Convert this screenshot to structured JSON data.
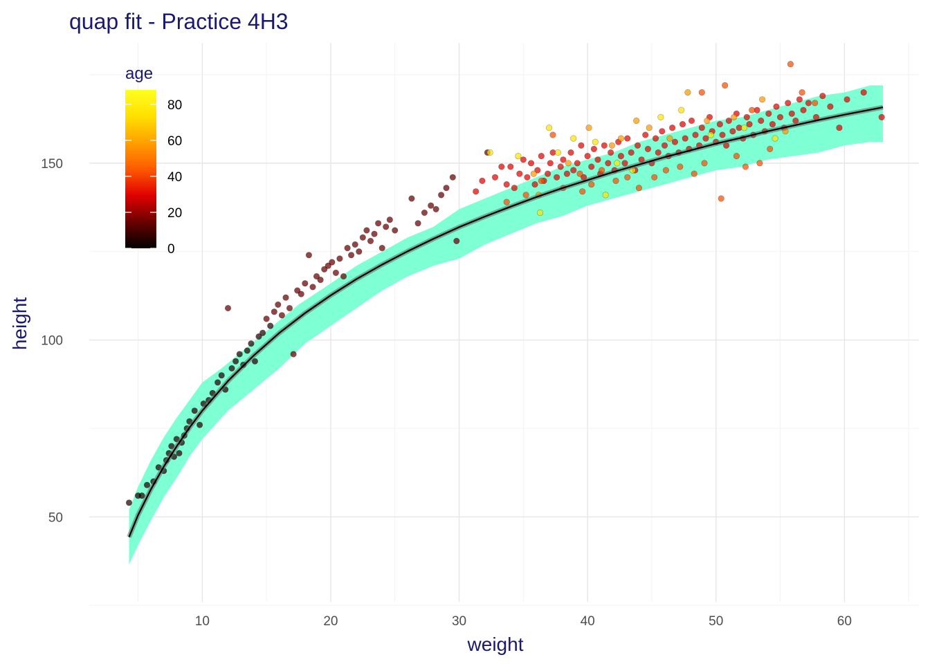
{
  "chart_data": {
    "type": "scatter",
    "title": "quap fit - Practice 4H3",
    "xlabel": "weight",
    "ylabel": "height",
    "xlim": [
      1.2,
      65.8
    ],
    "ylim": [
      26,
      184
    ],
    "x_ticks": [
      10,
      20,
      30,
      40,
      50,
      60
    ],
    "y_ticks": [
      50,
      100,
      150
    ],
    "grid": true,
    "title_color": "#191970",
    "band_color": "#7fffd4",
    "line_color": "#000000",
    "legend": {
      "title": "age",
      "position": "top-left",
      "ticks": [
        0,
        20,
        40,
        60,
        80
      ],
      "range": [
        0,
        88
      ],
      "colors": [
        "#000000",
        "#6b0000",
        "#e00000",
        "#ff5a00",
        "#ffa000",
        "#ffe000",
        "#ffff20"
      ]
    },
    "mean_line": [
      [
        4.3,
        44.3
      ],
      [
        5,
        50.5
      ],
      [
        6,
        57.8
      ],
      [
        7,
        64.2
      ],
      [
        8,
        69.9
      ],
      [
        9,
        75.2
      ],
      [
        10,
        80
      ],
      [
        12,
        88.4
      ],
      [
        14,
        95.6
      ],
      [
        16,
        102
      ],
      [
        18,
        107.6
      ],
      [
        20,
        112.6
      ],
      [
        22,
        117.2
      ],
      [
        24,
        121.3
      ],
      [
        26,
        125.1
      ],
      [
        28,
        128.6
      ],
      [
        30,
        131.9
      ],
      [
        32,
        134.9
      ],
      [
        34,
        137.7
      ],
      [
        36,
        140.4
      ],
      [
        38,
        142.9
      ],
      [
        40,
        145.2
      ],
      [
        42,
        147.5
      ],
      [
        44,
        149.6
      ],
      [
        46,
        151.7
      ],
      [
        48,
        153.6
      ],
      [
        50,
        155.5
      ],
      [
        52,
        157.2
      ],
      [
        54,
        159
      ],
      [
        56,
        160.6
      ],
      [
        58,
        162.2
      ],
      [
        60,
        163.7
      ],
      [
        62,
        165.1
      ],
      [
        63,
        165.8
      ]
    ],
    "interval_upper": [
      [
        4.3,
        52
      ],
      [
        5,
        58.5
      ],
      [
        6,
        66
      ],
      [
        7,
        72.5
      ],
      [
        8,
        78
      ],
      [
        9,
        83
      ],
      [
        10,
        88
      ],
      [
        11.5,
        92
      ],
      [
        13.5,
        98
      ],
      [
        15.5,
        104
      ],
      [
        17.5,
        110
      ],
      [
        20,
        116
      ],
      [
        22,
        121
      ],
      [
        24,
        125
      ],
      [
        26,
        129
      ],
      [
        28,
        132
      ],
      [
        30,
        137
      ],
      [
        32,
        140
      ],
      [
        34,
        143
      ],
      [
        36,
        146
      ],
      [
        38,
        149
      ],
      [
        40,
        151
      ],
      [
        42,
        153
      ],
      [
        44,
        156
      ],
      [
        46,
        158
      ],
      [
        48,
        160
      ],
      [
        50,
        162
      ],
      [
        52,
        163
      ],
      [
        54,
        165
      ],
      [
        56,
        167
      ],
      [
        58,
        169
      ],
      [
        60,
        170
      ],
      [
        62,
        172
      ],
      [
        63,
        172
      ]
    ],
    "interval_lower": [
      [
        4.3,
        36.5
      ],
      [
        5,
        42
      ],
      [
        6,
        49
      ],
      [
        7,
        55.5
      ],
      [
        8,
        61
      ],
      [
        9,
        67
      ],
      [
        10,
        72
      ],
      [
        12,
        80
      ],
      [
        14,
        86
      ],
      [
        16,
        92
      ],
      [
        18,
        99
      ],
      [
        20,
        104
      ],
      [
        22,
        109
      ],
      [
        24,
        114
      ],
      [
        26,
        118
      ],
      [
        28,
        121
      ],
      [
        30,
        123
      ],
      [
        32,
        127
      ],
      [
        34,
        130
      ],
      [
        36,
        133
      ],
      [
        38,
        135
      ],
      [
        40,
        138
      ],
      [
        42,
        140
      ],
      [
        44,
        142
      ],
      [
        46,
        144
      ],
      [
        48,
        146
      ],
      [
        50,
        148
      ],
      [
        52,
        149
      ],
      [
        54,
        151
      ],
      [
        56,
        152
      ],
      [
        58,
        153
      ],
      [
        60,
        155
      ],
      [
        62,
        156
      ],
      [
        63,
        156
      ]
    ],
    "points": [
      [
        4.3,
        54,
        1
      ],
      [
        5,
        56,
        1
      ],
      [
        5.3,
        56,
        1
      ],
      [
        5.7,
        59,
        1
      ],
      [
        6.2,
        60,
        1
      ],
      [
        6.6,
        64,
        1
      ],
      [
        7,
        63,
        1
      ],
      [
        7.2,
        66,
        1
      ],
      [
        7.4,
        68,
        1
      ],
      [
        7.6,
        70,
        1
      ],
      [
        7.8,
        67,
        1
      ],
      [
        8,
        72,
        1
      ],
      [
        8.2,
        68,
        1
      ],
      [
        8.4,
        71,
        1
      ],
      [
        8.6,
        73,
        1
      ],
      [
        8.8,
        75,
        1
      ],
      [
        9,
        77,
        1
      ],
      [
        9.4,
        80,
        1
      ],
      [
        9.8,
        76,
        1
      ],
      [
        10.1,
        82,
        1
      ],
      [
        10.5,
        83,
        1
      ],
      [
        10.8,
        85,
        1
      ],
      [
        11.2,
        88,
        1
      ],
      [
        11.5,
        90,
        1
      ],
      [
        11.8,
        86,
        1
      ],
      [
        12,
        109,
        2
      ],
      [
        12.3,
        92,
        1
      ],
      [
        12.6,
        94,
        1
      ],
      [
        12.9,
        96,
        1
      ],
      [
        13.2,
        93,
        1
      ],
      [
        13.5,
        97,
        1
      ],
      [
        13.8,
        99,
        1
      ],
      [
        14.1,
        94,
        1
      ],
      [
        14.4,
        101,
        1
      ],
      [
        14.7,
        102,
        1
      ],
      [
        15,
        106,
        2
      ],
      [
        15.3,
        104,
        1
      ],
      [
        15.6,
        108,
        2
      ],
      [
        15.9,
        110,
        2
      ],
      [
        16.2,
        107,
        2
      ],
      [
        16.5,
        112,
        2
      ],
      [
        16.8,
        109,
        2
      ],
      [
        17.1,
        96,
        2
      ],
      [
        17.4,
        114,
        2
      ],
      [
        17.7,
        113,
        2
      ],
      [
        18,
        116,
        2
      ],
      [
        18.3,
        124,
        2
      ],
      [
        18.6,
        115,
        2
      ],
      [
        18.9,
        118,
        2
      ],
      [
        19.2,
        117,
        2
      ],
      [
        19.5,
        120,
        2
      ],
      [
        19.8,
        121,
        2
      ],
      [
        20.1,
        122,
        2
      ],
      [
        20.4,
        119,
        2
      ],
      [
        20.7,
        123,
        2
      ],
      [
        21,
        118,
        2
      ],
      [
        21.3,
        126,
        2
      ],
      [
        21.6,
        124,
        2
      ],
      [
        21.9,
        127,
        2
      ],
      [
        22.2,
        125,
        2
      ],
      [
        22.5,
        129,
        2
      ],
      [
        22.8,
        131,
        2
      ],
      [
        23.1,
        128,
        2
      ],
      [
        23.4,
        130,
        2
      ],
      [
        23.7,
        133,
        2
      ],
      [
        24,
        126,
        2
      ],
      [
        24.3,
        132,
        2
      ],
      [
        24.6,
        134,
        2
      ],
      [
        25,
        131,
        2
      ],
      [
        26.3,
        140,
        2
      ],
      [
        26.8,
        133,
        2
      ],
      [
        27.3,
        136,
        2
      ],
      [
        27.8,
        138,
        2
      ],
      [
        28.2,
        137,
        2
      ],
      [
        28.6,
        141,
        2
      ],
      [
        29,
        143,
        2
      ],
      [
        29.5,
        146,
        2
      ],
      [
        29.8,
        128,
        2
      ],
      [
        31.3,
        142,
        3
      ],
      [
        31.8,
        145,
        3
      ],
      [
        32.2,
        153,
        2
      ],
      [
        32.8,
        146,
        3
      ],
      [
        33.3,
        149,
        3
      ],
      [
        33.7,
        144,
        3
      ],
      [
        34,
        149,
        3
      ],
      [
        34.3,
        143,
        3
      ],
      [
        34.7,
        147,
        3
      ],
      [
        35,
        151,
        3
      ],
      [
        35.3,
        146,
        3
      ],
      [
        35.6,
        150,
        3
      ],
      [
        35.9,
        144,
        3
      ],
      [
        36.1,
        148,
        3
      ],
      [
        36.4,
        152,
        3
      ],
      [
        36.6,
        145,
        3
      ],
      [
        36.9,
        147,
        3
      ],
      [
        37.1,
        150,
        3
      ],
      [
        37.3,
        153,
        3
      ],
      [
        37.6,
        146,
        3
      ],
      [
        37.9,
        149,
        3
      ],
      [
        38.1,
        151,
        3
      ],
      [
        38.4,
        147,
        3
      ],
      [
        38.7,
        153,
        3
      ],
      [
        38.9,
        148,
        3
      ],
      [
        39.2,
        150,
        3
      ],
      [
        39.5,
        155,
        3
      ],
      [
        39.7,
        146,
        3
      ],
      [
        40,
        152,
        3
      ],
      [
        40.3,
        149,
        3
      ],
      [
        40.5,
        154,
        3
      ],
      [
        40.8,
        151,
        3
      ],
      [
        41,
        147,
        3
      ],
      [
        41.3,
        155,
        3
      ],
      [
        41.6,
        150,
        3
      ],
      [
        41.8,
        153,
        3
      ],
      [
        42.1,
        148,
        3
      ],
      [
        42.4,
        156,
        3
      ],
      [
        42.6,
        152,
        3
      ],
      [
        42.9,
        150,
        3
      ],
      [
        43.1,
        157,
        3
      ],
      [
        43.4,
        153,
        3
      ],
      [
        43.7,
        148,
        3
      ],
      [
        43.9,
        155,
        3
      ],
      [
        44.2,
        151,
        3
      ],
      [
        44.5,
        158,
        3
      ],
      [
        44.7,
        154,
        3
      ],
      [
        45,
        150,
        3
      ],
      [
        45.3,
        157,
        3
      ],
      [
        45.5,
        153,
        3
      ],
      [
        45.8,
        159,
        3
      ],
      [
        46,
        155,
        3
      ],
      [
        46.3,
        152,
        3
      ],
      [
        46.6,
        160,
        3
      ],
      [
        46.8,
        156,
        3
      ],
      [
        47.1,
        153,
        3
      ],
      [
        47.4,
        161,
        3
      ],
      [
        47.6,
        157,
        3
      ],
      [
        47.9,
        154,
        3
      ],
      [
        48.1,
        162,
        3
      ],
      [
        48.4,
        158,
        3
      ],
      [
        48.7,
        155,
        3
      ],
      [
        48.9,
        160,
        3
      ],
      [
        49.2,
        157,
        3
      ],
      [
        49.5,
        163,
        3
      ],
      [
        49.7,
        159,
        3
      ],
      [
        50,
        156,
        3
      ],
      [
        50.3,
        161,
        3
      ],
      [
        50.5,
        158,
        3
      ],
      [
        50.8,
        155,
        3
      ],
      [
        51,
        162,
        3
      ],
      [
        51.3,
        159,
        3
      ],
      [
        51.6,
        164,
        3
      ],
      [
        51.8,
        160,
        3
      ],
      [
        52.1,
        157,
        3
      ],
      [
        52.4,
        163,
        3
      ],
      [
        52.6,
        161,
        3
      ],
      [
        52.9,
        158,
        3
      ],
      [
        53.2,
        165,
        3
      ],
      [
        53.5,
        162,
        3
      ],
      [
        53.8,
        159,
        3
      ],
      [
        54.1,
        164,
        3
      ],
      [
        54.4,
        161,
        3
      ],
      [
        54.7,
        166,
        3
      ],
      [
        55,
        163,
        3
      ],
      [
        55.3,
        160,
        3
      ],
      [
        55.6,
        167,
        3
      ],
      [
        55.9,
        164,
        3
      ],
      [
        56.2,
        162,
        3
      ],
      [
        56.5,
        168,
        3
      ],
      [
        56.8,
        165,
        3
      ],
      [
        57.2,
        167,
        3
      ],
      [
        57.8,
        163,
        3
      ],
      [
        58.3,
        169,
        3
      ],
      [
        58.9,
        166,
        3
      ],
      [
        59.6,
        160,
        3
      ],
      [
        60.2,
        168,
        3
      ],
      [
        61.5,
        170,
        3
      ],
      [
        62.9,
        163,
        3
      ],
      [
        33.7,
        139,
        4
      ],
      [
        35.2,
        141,
        4
      ],
      [
        36.4,
        145,
        4
      ],
      [
        38.1,
        143,
        4
      ],
      [
        39.4,
        147,
        4
      ],
      [
        40.3,
        144,
        4
      ],
      [
        41.1,
        148,
        4
      ],
      [
        42.2,
        145,
        4
      ],
      [
        43.1,
        146,
        4
      ],
      [
        44,
        143,
        4
      ],
      [
        45.2,
        146,
        4
      ],
      [
        46.1,
        148,
        4
      ],
      [
        47.2,
        149,
        4
      ],
      [
        48.3,
        147,
        4
      ],
      [
        49.1,
        150,
        4
      ],
      [
        50.4,
        140,
        4
      ],
      [
        51.6,
        152,
        4
      ],
      [
        52.3,
        149,
        4
      ],
      [
        53.4,
        150,
        4
      ],
      [
        55.8,
        178,
        4
      ],
      [
        56.7,
        170,
        4
      ],
      [
        57.7,
        167,
        4
      ],
      [
        48.9,
        170,
        4
      ],
      [
        50.7,
        172,
        4
      ],
      [
        52.8,
        165,
        4
      ],
      [
        54.2,
        154,
        4
      ],
      [
        37.3,
        158,
        4
      ],
      [
        39.6,
        142,
        4
      ],
      [
        36.2,
        141,
        5
      ],
      [
        38.5,
        150,
        5
      ],
      [
        40.1,
        160,
        5
      ],
      [
        42.6,
        157,
        5
      ],
      [
        44.8,
        160,
        5
      ],
      [
        46.4,
        157,
        5
      ],
      [
        47.8,
        170,
        5
      ],
      [
        49.3,
        162,
        5
      ],
      [
        51.4,
        163,
        5
      ],
      [
        53.6,
        168,
        5
      ],
      [
        55.4,
        159,
        5
      ],
      [
        35.8,
        147,
        5
      ],
      [
        41.9,
        155,
        5
      ],
      [
        43.8,
        162,
        5
      ],
      [
        32.4,
        153,
        6
      ],
      [
        34.6,
        152,
        6
      ],
      [
        36.3,
        136,
        6
      ],
      [
        37,
        160,
        6
      ],
      [
        38.9,
        157,
        6
      ],
      [
        40.6,
        156,
        6
      ],
      [
        41.4,
        141,
        6
      ],
      [
        43.5,
        148,
        6
      ],
      [
        45.7,
        163,
        6
      ],
      [
        47.3,
        165,
        6
      ],
      [
        49.6,
        158,
        6
      ],
      [
        52.2,
        160,
        6
      ],
      [
        54.6,
        157,
        6
      ],
      [
        37.7,
        153,
        6
      ],
      [
        42.3,
        150,
        6
      ]
    ]
  }
}
